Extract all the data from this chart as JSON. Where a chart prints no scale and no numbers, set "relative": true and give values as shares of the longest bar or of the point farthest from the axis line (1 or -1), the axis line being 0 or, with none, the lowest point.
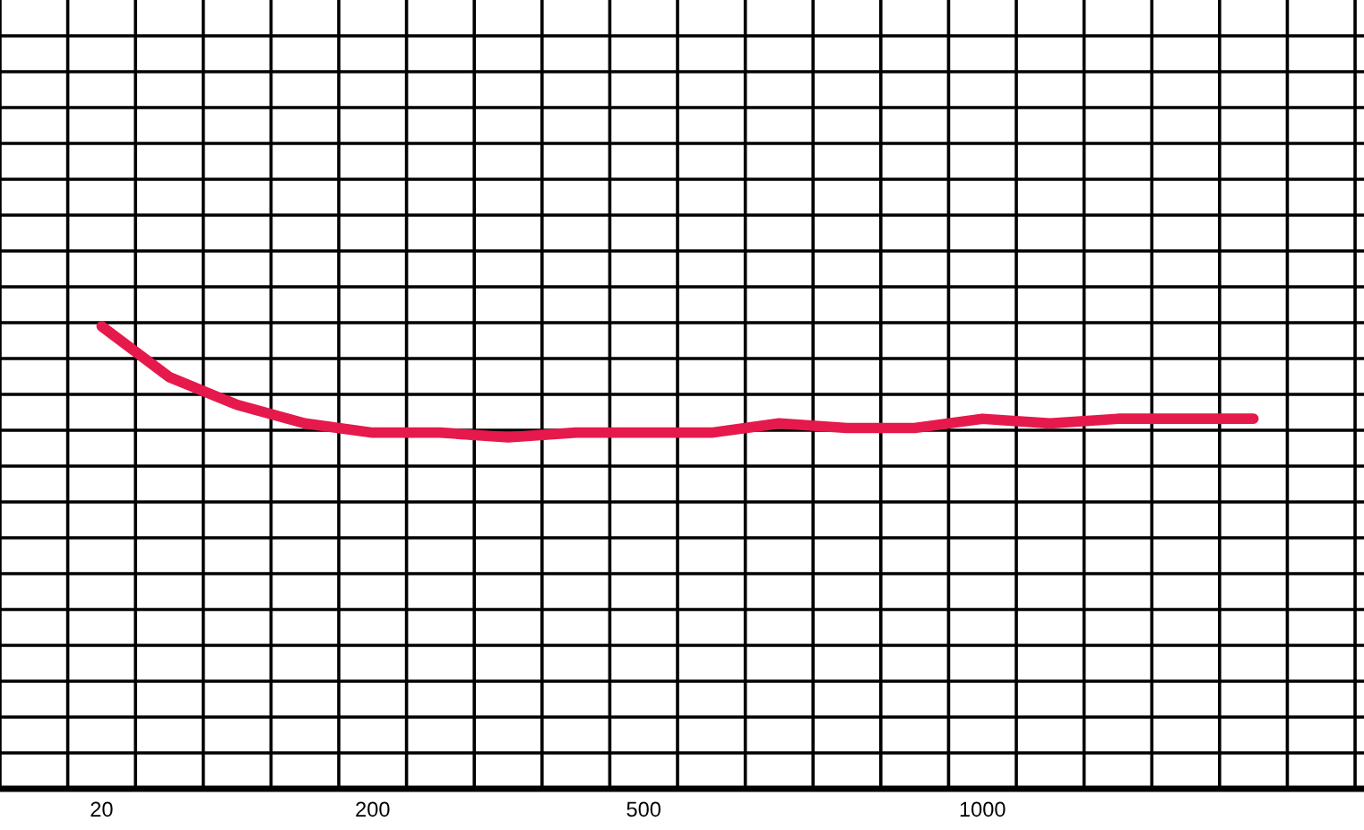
{
  "chart_data": {
    "type": "line",
    "relative": true,
    "categories": [
      null,
      "20",
      null,
      null,
      null,
      "200",
      null,
      null,
      null,
      "500",
      null,
      null,
      null,
      null,
      "1000",
      null,
      null,
      null,
      null,
      null
    ],
    "series": [
      {
        "color": "#e5194b",
        "values": [
          null,
          1.0,
          0.89,
          0.83,
          0.79,
          0.77,
          0.77,
          0.76,
          0.77,
          0.77,
          0.77,
          0.79,
          0.78,
          0.78,
          0.8,
          0.79,
          0.8,
          0.8,
          0.8,
          null
        ]
      }
    ],
    "grid": true,
    "line_style": "solid"
  }
}
